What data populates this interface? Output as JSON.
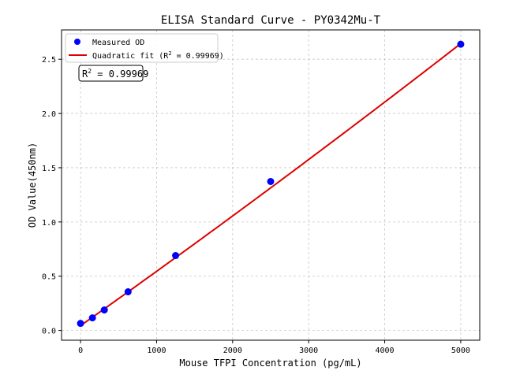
{
  "chart_data": {
    "type": "scatter",
    "title": "ELISA Standard Curve - PY0342Mu-T",
    "xlabel": "Mouse TFPI Concentration (pg/mL)",
    "ylabel": "OD Value(450nm)",
    "xlim": [
      -250,
      5250
    ],
    "ylim": [
      -0.09,
      2.77
    ],
    "xticks": [
      0,
      1000,
      2000,
      3000,
      4000,
      5000
    ],
    "xtick_labels": [
      "0",
      "1000",
      "2000",
      "3000",
      "4000",
      "5000"
    ],
    "yticks": [
      0,
      0.5,
      1,
      1.5,
      2,
      2.5
    ],
    "ytick_labels": [
      "0.0",
      "0.5",
      "1.0",
      "1.5",
      "2.0",
      "2.5"
    ],
    "grid": true,
    "legend_position": "top-left",
    "series": [
      {
        "name": "Measured OD",
        "kind": "scatter",
        "color": "#0000ff",
        "x": [
          0,
          156.25,
          312.5,
          625,
          1250,
          2500,
          5000
        ],
        "y": [
          0.065,
          0.116,
          0.189,
          0.356,
          0.69,
          1.373,
          2.638
        ]
      },
      {
        "name": "Quadratic fit",
        "legend_label_prefix": "Quadratic fit (R",
        "legend_label_suffix": " = 0.99969)",
        "kind": "line",
        "color": "#dd0000",
        "coefficients": {
          "a": 0.044,
          "b": 0.000496,
          "c": 4.8e-09
        },
        "x_range": [
          0,
          5000
        ]
      }
    ],
    "annotation": {
      "prefix": "R",
      "superscript": "2",
      "suffix": " = 0.99969"
    }
  }
}
